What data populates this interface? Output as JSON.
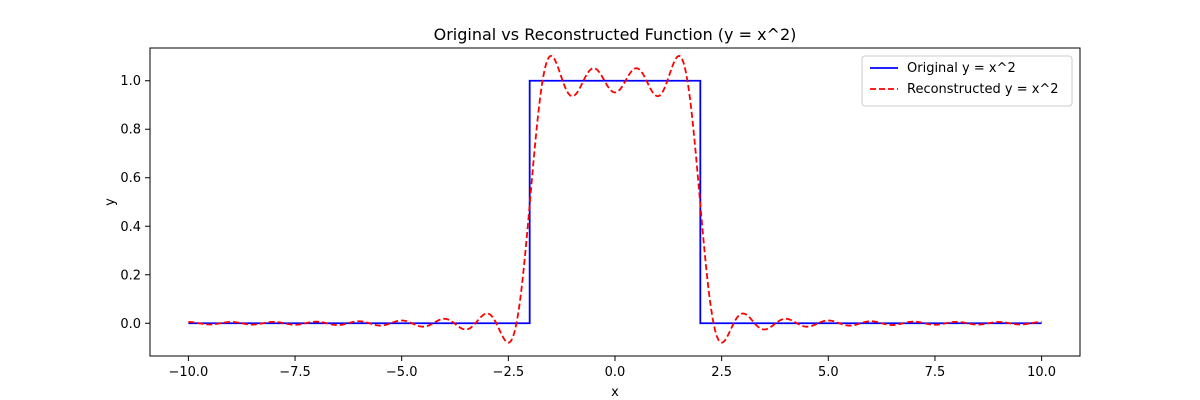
{
  "chart_data": {
    "type": "line",
    "title": "Original vs Reconstructed Function (y = x^2)",
    "xlabel": "x",
    "ylabel": "y",
    "xlim": [
      -10.9,
      10.9
    ],
    "ylim": [
      -0.135,
      1.135
    ],
    "xticks": [
      -10.0,
      -7.5,
      -5.0,
      -2.5,
      0.0,
      2.5,
      5.0,
      7.5,
      10.0
    ],
    "xtick_labels": [
      "−10.0",
      "−7.5",
      "−5.0",
      "−2.5",
      "0.0",
      "2.5",
      "5.0",
      "7.5",
      "10.0"
    ],
    "yticks": [
      0.0,
      0.2,
      0.4,
      0.6,
      0.8,
      1.0
    ],
    "ytick_labels": [
      "0.0",
      "0.2",
      "0.4",
      "0.6",
      "0.8",
      "1.0"
    ],
    "grid": false,
    "legend_position": "top-right",
    "series": [
      {
        "name": "Original y = x^2",
        "color": "#0000ff",
        "style": "solid",
        "x": [
          -10,
          -2,
          -2,
          2,
          2,
          10
        ],
        "y": [
          0,
          0,
          1,
          1,
          0,
          0
        ]
      },
      {
        "name": "Reconstructed y = x^2",
        "color": "#ff0000",
        "style": "dashed",
        "n_harmonics": 20
      }
    ]
  }
}
